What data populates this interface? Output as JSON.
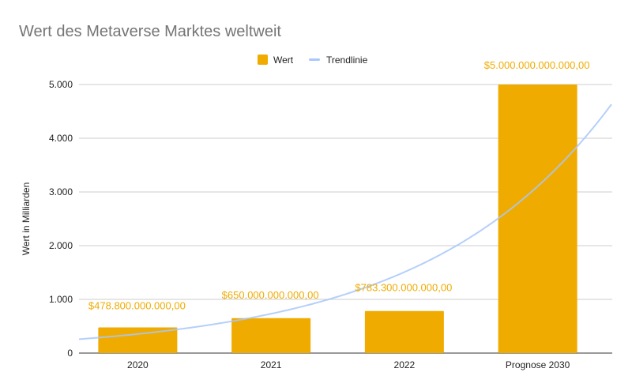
{
  "chart_data": {
    "type": "bar",
    "title": "Wert des Metaverse Marktes weltweit",
    "xlabel": "",
    "ylabel": "Wert in Milliarden",
    "ylim": [
      0,
      5000
    ],
    "yticks": [
      0,
      1000,
      2000,
      3000,
      4000,
      5000
    ],
    "ytick_labels": [
      "0",
      "1.000",
      "2.000",
      "3.000",
      "4.000",
      "5.000"
    ],
    "grid": true,
    "legend_position": "top",
    "categories": [
      "2020",
      "2021",
      "2022",
      "Prognose 2030"
    ],
    "series": [
      {
        "name": "Wert",
        "type": "bar",
        "color": "#f0ab00",
        "values": [
          478.8,
          650,
          783.3,
          5000
        ],
        "data_labels": [
          "$478.800.000.000,00",
          "$650.000.000.000,00",
          "$783.300.000.000,00",
          "$5.000.000.000.000,00"
        ]
      },
      {
        "name": "Trendlinie",
        "type": "line",
        "trend": "exponential",
        "color": "#a8c7fa"
      }
    ]
  }
}
